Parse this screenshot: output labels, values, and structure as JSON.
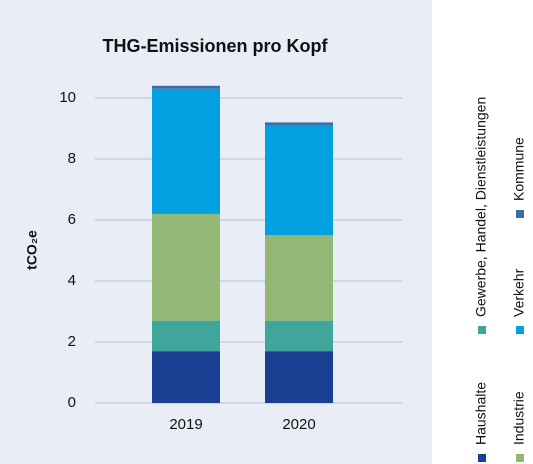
{
  "chart_data": {
    "type": "stacked_bar",
    "title": "THG-Emissionen pro Kopf",
    "y_label": "tCO₂e",
    "categories": [
      "2019",
      "2020"
    ],
    "series": [
      {
        "name": "Haushalte",
        "color": "#1b3f93",
        "values": [
          1.7,
          1.7
        ]
      },
      {
        "name": "Gewerbe, Handel, Dienstleistungen",
        "color": "#40a59a",
        "values": [
          1.0,
          1.0
        ]
      },
      {
        "name": "Industrie",
        "color": "#93b876",
        "values": [
          3.5,
          2.8
        ]
      },
      {
        "name": "Verkehr",
        "color": "#00a0e1",
        "values": [
          4.1,
          3.6
        ]
      },
      {
        "name": "Kommune",
        "color": "#3c6ea8",
        "values": [
          0.1,
          0.1
        ]
      }
    ],
    "ylim": [
      0,
      11
    ],
    "yticks": [
      0,
      2,
      4,
      6,
      8,
      10
    ],
    "grid": true
  }
}
